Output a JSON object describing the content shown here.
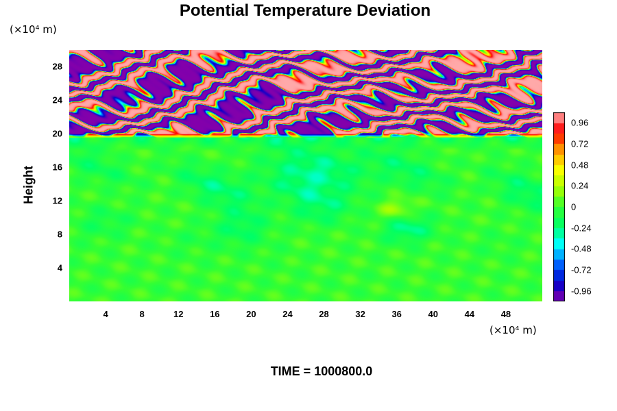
{
  "chart_data": {
    "type": "heatmap",
    "title": "Potential Temperature Deviation",
    "ylabel": "Height",
    "x_unit": "(×10⁴ m)",
    "y_unit": "(×10⁴ m)",
    "xlim": [
      0,
      52
    ],
    "ylim": [
      0,
      30
    ],
    "x_ticks": [
      "4",
      "8",
      "12",
      "16",
      "20",
      "24",
      "28",
      "32",
      "36",
      "40",
      "44",
      "48"
    ],
    "y_ticks": [
      "4",
      "8",
      "12",
      "16",
      "20",
      "24",
      "28"
    ],
    "colorbar": {
      "range": [
        -1.08,
        1.08
      ],
      "ticks": [
        "0.96",
        "0.72",
        "0.48",
        "0.24",
        "0",
        "-0.24",
        "-0.48",
        "-0.72",
        "-0.96"
      ]
    },
    "colormap": [
      "#8800aa",
      "#0000cc",
      "#0066ff",
      "#00ffff",
      "#00ff66",
      "#33ff33",
      "#aaff00",
      "#ffff00",
      "#ff9900",
      "#ff0000",
      "#ffb0b0"
    ],
    "field_description": {
      "lower_layer": {
        "height_range": [
          0,
          19.5
        ],
        "value_range": [
          -0.35,
          0.3
        ],
        "dominant": "near 0 (green)"
      },
      "upper_layer": {
        "height_range": [
          19.5,
          30
        ],
        "value_range": [
          -1.08,
          1.08
        ],
        "dominant": "alternating bands of +0.96 (pink) and -0.96 (purple)"
      }
    }
  },
  "footer": {
    "time_label": "TIME = 1000800.0"
  }
}
